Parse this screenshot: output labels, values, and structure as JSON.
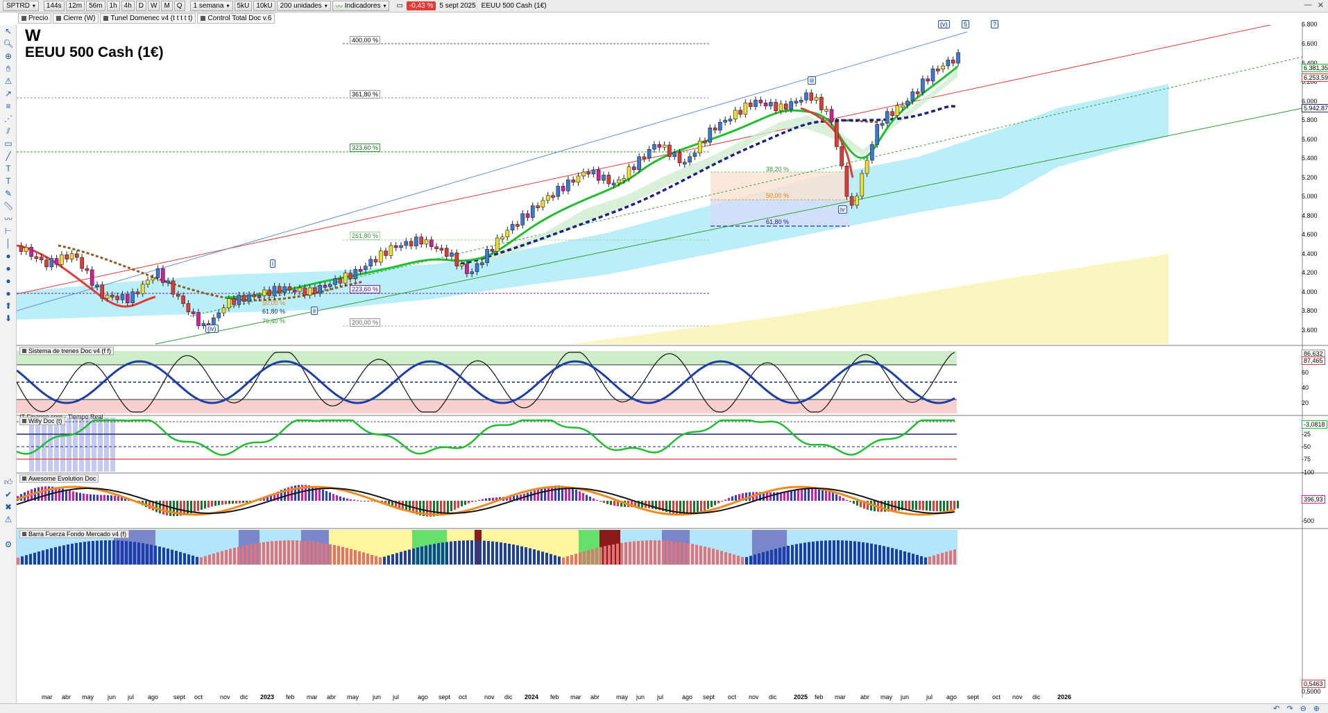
{
  "toolbar": {
    "symbol": "SPTRD",
    "timeframes": [
      "144s",
      "12m",
      "56m",
      "1h",
      "4h",
      "D",
      "W",
      "M",
      "Q"
    ],
    "period": "1 semana",
    "ticks": [
      "5kU",
      "10kU"
    ],
    "units": "200 unidades",
    "indicators": "Indicadores",
    "change": "-0,43 %",
    "date": "5 sept 2025",
    "instrument": "EEUU 500 Cash (1€)"
  },
  "tabs": [
    "Precio",
    "Cierre (W)",
    "Tunel Domenec v4 (t t t t t)",
    "Control Total Doc v.6"
  ],
  "chart": {
    "timeframe_letter": "W",
    "name": "EEUU 500 Cash (1€)",
    "source": "IT-Finance.com - Tiempo Real"
  },
  "price_axis": [
    "6.800",
    "6.600",
    "6.400",
    "6.200",
    "6.000",
    "5.800",
    "5.600",
    "5.400",
    "5.200",
    "5.000",
    "4.800",
    "4.600",
    "4.400",
    "4.200",
    "4.000",
    "3.800",
    "3.600"
  ],
  "price_tags": [
    "6.381,35",
    "6.253,59",
    "5.942,87"
  ],
  "fib_labels": [
    "400,00 %",
    "361,80 %",
    "323,60 %",
    "261,80 %",
    "223,60 %",
    "200,00 %"
  ],
  "fib_small": [
    "50,00 %",
    "61,80 %",
    "76,40 %",
    "38,20 %",
    "50,00 %",
    "61,80 %"
  ],
  "waves": [
    "(v)",
    "5",
    "?",
    "iii",
    "i",
    "ii",
    "(iv)",
    "iv"
  ],
  "panels": {
    "trenes": {
      "label": "Sistema de trenes Doc v4 (f f)",
      "axis": [
        "60",
        "40",
        "20"
      ],
      "tags": [
        "86,632",
        "87,465"
      ]
    },
    "willy": {
      "label": "Willy Doc (t)",
      "axis": [
        "-25",
        "-50",
        "-75",
        "-100"
      ],
      "tags": [
        "-3,0818"
      ]
    },
    "awesome": {
      "label": "Awesome Evolution Doc",
      "axis": [
        "-500"
      ],
      "tags": [
        "396,93"
      ]
    },
    "barra": {
      "label": "Barra Fuerza Fondo Mercado v4 (f)",
      "axis": [
        "0,5000"
      ],
      "tags": [
        "0,5463"
      ]
    }
  },
  "months": [
    {
      "t": "mar",
      "x": 42
    },
    {
      "t": "abr",
      "x": 71
    },
    {
      "t": "may",
      "x": 100
    },
    {
      "t": "jun",
      "x": 137
    },
    {
      "t": "jul",
      "x": 166
    },
    {
      "t": "ago",
      "x": 195
    },
    {
      "t": "sept",
      "x": 232
    },
    {
      "t": "oct",
      "x": 262
    },
    {
      "t": "nov",
      "x": 299
    },
    {
      "t": "dic",
      "x": 328
    },
    {
      "t": "2023",
      "x": 357,
      "y": true
    },
    {
      "t": "feb",
      "x": 394
    },
    {
      "t": "mar",
      "x": 424
    },
    {
      "t": "abr",
      "x": 453
    },
    {
      "t": "may",
      "x": 482
    },
    {
      "t": "jun",
      "x": 519
    },
    {
      "t": "jul",
      "x": 548
    },
    {
      "t": "ago",
      "x": 584
    },
    {
      "t": "sept",
      "x": 614
    },
    {
      "t": "oct",
      "x": 643
    },
    {
      "t": "nov",
      "x": 680
    },
    {
      "t": "dic",
      "x": 709
    },
    {
      "t": "2024",
      "x": 738,
      "y": true
    },
    {
      "t": "feb",
      "x": 775
    },
    {
      "t": "mar",
      "x": 804
    },
    {
      "t": "abr",
      "x": 833
    },
    {
      "t": "may",
      "x": 870
    },
    {
      "t": "jun",
      "x": 899
    },
    {
      "t": "jul",
      "x": 929
    },
    {
      "t": "ago",
      "x": 965
    },
    {
      "t": "sept",
      "x": 995
    },
    {
      "t": "oct",
      "x": 1031
    },
    {
      "t": "nov",
      "x": 1061
    },
    {
      "t": "dic",
      "x": 1090
    },
    {
      "t": "2025",
      "x": 1126,
      "y": true
    },
    {
      "t": "feb",
      "x": 1156
    },
    {
      "t": "mar",
      "x": 1185
    },
    {
      "t": "abr",
      "x": 1222
    },
    {
      "t": "may",
      "x": 1251
    },
    {
      "t": "jun",
      "x": 1280
    },
    {
      "t": "jul",
      "x": 1317
    },
    {
      "t": "ago",
      "x": 1346
    },
    {
      "t": "sept",
      "x": 1376
    },
    {
      "t": "oct",
      "x": 1412
    },
    {
      "t": "nov",
      "x": 1441
    },
    {
      "t": "dic",
      "x": 1470
    },
    {
      "t": "2026",
      "x": 1506,
      "y": true
    }
  ],
  "colors": {
    "up": "#3a78d8",
    "down": "#e53935",
    "yellow": "#f2df2a",
    "green": "#1dbf2c",
    "navy": "#1a237e",
    "brown": "#8d5a1a"
  }
}
